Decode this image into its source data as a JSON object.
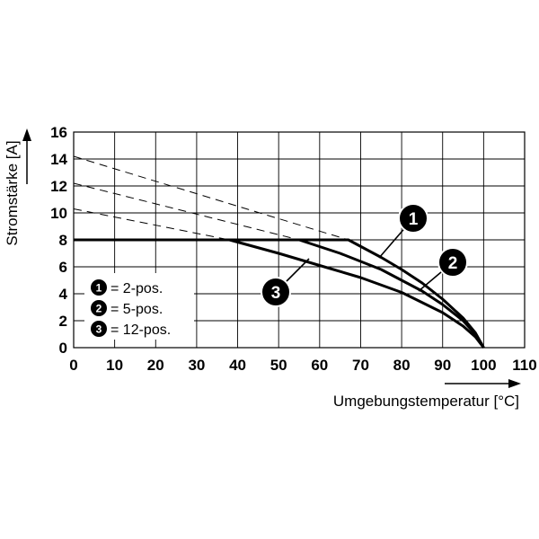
{
  "chart_data": {
    "type": "line",
    "xlabel": "Umgebungstemperatur [°C]",
    "ylabel": "Stromstärke [A]",
    "xlim": [
      0,
      110
    ],
    "ylim": [
      0,
      16
    ],
    "x_ticks": [
      "0",
      "10",
      "20",
      "30",
      "40",
      "50",
      "60",
      "70",
      "80",
      "90",
      "100",
      "110"
    ],
    "y_ticks": [
      "0",
      "2",
      "4",
      "6",
      "8",
      "10",
      "12",
      "14",
      "16"
    ],
    "grid": true,
    "series": [
      {
        "marker": "1",
        "solid": [
          [
            0,
            8
          ],
          [
            67,
            8
          ],
          [
            75,
            6.7
          ],
          [
            80,
            5.8
          ],
          [
            85,
            4.8
          ],
          [
            90,
            3.6
          ],
          [
            95,
            2.2
          ],
          [
            98,
            1.1
          ],
          [
            100,
            0
          ]
        ],
        "dashed": [
          [
            0,
            14.2
          ],
          [
            67,
            8
          ]
        ]
      },
      {
        "marker": "2",
        "solid": [
          [
            0,
            8
          ],
          [
            55,
            8
          ],
          [
            65,
            7
          ],
          [
            75,
            5.8
          ],
          [
            85,
            4.2
          ],
          [
            90,
            3.2
          ],
          [
            95,
            2
          ],
          [
            98,
            1
          ],
          [
            100,
            0
          ]
        ],
        "dashed": [
          [
            0,
            12.2
          ],
          [
            55,
            8
          ]
        ]
      },
      {
        "marker": "3",
        "solid": [
          [
            0,
            8
          ],
          [
            38,
            8
          ],
          [
            50,
            7
          ],
          [
            60,
            6.1
          ],
          [
            70,
            5.2
          ],
          [
            80,
            4.1
          ],
          [
            90,
            2.6
          ],
          [
            95,
            1.6
          ],
          [
            98,
            0.8
          ],
          [
            100,
            0
          ]
        ],
        "dashed": [
          [
            0,
            10.3
          ],
          [
            38,
            8
          ]
        ]
      }
    ],
    "legend": [
      {
        "marker": "1",
        "label": "= 2-pos."
      },
      {
        "marker": "2",
        "label": "= 5-pos."
      },
      {
        "marker": "3",
        "label": "= 12-pos."
      }
    ]
  }
}
